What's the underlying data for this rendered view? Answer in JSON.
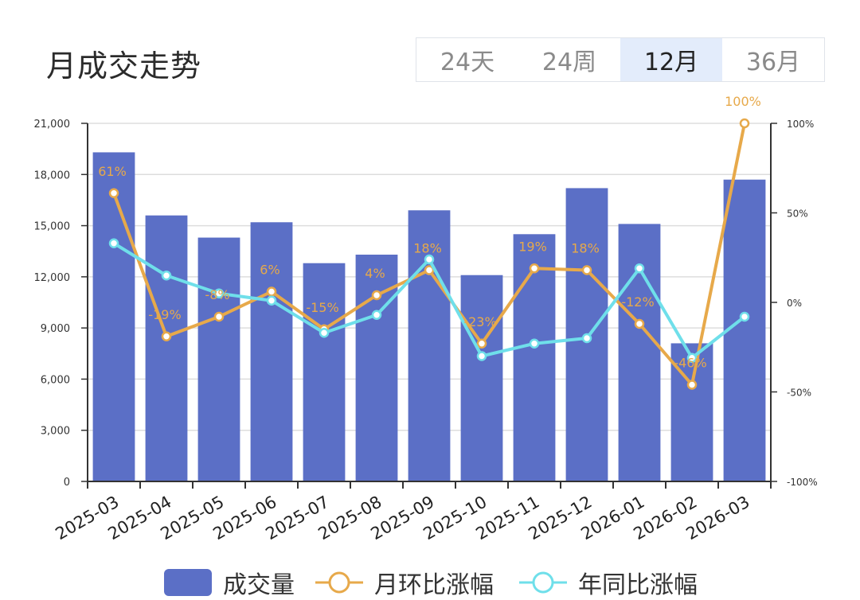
{
  "header": {
    "title": "月成交走势",
    "tabs": [
      {
        "label": "24天",
        "active": false
      },
      {
        "label": "24周",
        "active": false
      },
      {
        "label": "12月",
        "active": true
      },
      {
        "label": "36月",
        "active": false
      }
    ]
  },
  "colors": {
    "bar": "#5b6fc6",
    "mom_line": "#e7a94a",
    "yoy_line": "#6fdfea",
    "mom_label": "#e7a94a",
    "grid": "#dddddd",
    "axis": "#333333"
  },
  "chart_data": {
    "type": "bar",
    "categories": [
      "2025-03",
      "2025-04",
      "2025-05",
      "2025-06",
      "2025-07",
      "2025-08",
      "2025-09",
      "2025-10",
      "2025-11",
      "2025-12",
      "2026-01",
      "2026-02",
      "2026-03"
    ],
    "series": [
      {
        "name": "成交量",
        "type": "bar",
        "axis": "left",
        "values": [
          19300,
          15600,
          14300,
          15200,
          12800,
          13300,
          15900,
          12100,
          14500,
          17200,
          15100,
          8100,
          17700
        ]
      },
      {
        "name": "月环比涨幅",
        "type": "line",
        "axis": "right",
        "values": [
          61,
          -19,
          -8,
          6,
          -15,
          4,
          18,
          -23,
          19,
          18,
          -12,
          -46,
          100
        ],
        "labels": [
          "61%",
          "-19%",
          "-8%",
          "6%",
          "-15%",
          "4%",
          "18%",
          "-23%",
          "19%",
          "18%",
          "-12%",
          "-46%",
          "100%"
        ]
      },
      {
        "name": "年同比涨幅",
        "type": "line",
        "axis": "right",
        "values": [
          33,
          15,
          5,
          1,
          -17,
          -7,
          24,
          -30,
          -23,
          -20,
          19,
          -31,
          -8
        ]
      }
    ],
    "y_left": {
      "min": 0,
      "max": 21000,
      "ticks": [
        "0",
        "3,000",
        "6,000",
        "9,000",
        "12,000",
        "15,000",
        "18,000",
        "21,000"
      ]
    },
    "y_right": {
      "min": -100,
      "max": 100,
      "ticks": [
        "-100%",
        "-50%",
        "0%",
        "50%",
        "100%"
      ]
    },
    "grid": true,
    "legend_position": "bottom"
  }
}
